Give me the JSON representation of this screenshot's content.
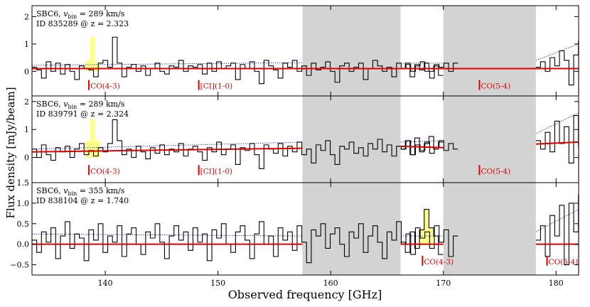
{
  "figure": {
    "ylabel": "Flux density [mJy/beam]",
    "xlabel": "Observed frequency [GHz]",
    "x_ticks": [
      140,
      150,
      160,
      170,
      180
    ],
    "xlim": [
      133.5,
      182.0
    ]
  },
  "chart_data": [
    {
      "type": "line",
      "title_line1": "SBC6, v_bin = 289 km/s",
      "title_line1_prefix": "SBC6, ",
      "title_line1_var": "v",
      "title_line1_sub": "bin",
      "title_line1_rest": " = 289 km/s",
      "title_line2": "ID 835289 @ z = 2.323",
      "ylim": [
        -0.9,
        2.4
      ],
      "y_ticks": [
        0,
        1,
        2
      ],
      "y_tick_labels": [
        "0",
        "1",
        "2"
      ],
      "gray_bands": [
        [
          157.5,
          166.2
        ],
        [
          170.0,
          178.2
        ]
      ],
      "spectrum_segments": [
        {
          "start": 133.5,
          "step": 0.42,
          "values": [
            0.15,
            0.05,
            -0.25,
            0.35,
            0.0,
            0.3,
            -0.1,
            0.25,
            0.0,
            -0.3,
            0.2,
            0.1,
            0.05,
            -0.2,
            0.3,
            0.4,
            0.15,
            1.25,
            0.3,
            -0.2,
            0.15,
            0.25,
            0.0,
            0.2,
            -0.15,
            0.1,
            0.3,
            0.0,
            -0.1,
            0.2,
            0.15,
            0.4,
            0.0,
            0.2,
            0.15,
            0.25,
            -0.1,
            0.3,
            0.0,
            0.35,
            0.1,
            0.2,
            0.3,
            -0.3,
            0.25,
            0.1,
            0.35,
            0.0,
            -0.45,
            0.4,
            0.2,
            0.05,
            -0.25,
            0.3,
            0.15,
            0.4,
            0.0,
            0.2,
            -0.15,
            0.3,
            0.05,
            0.15,
            0.35,
            0.0,
            -0.4,
            0.2,
            0.3,
            0.0,
            0.15,
            0.3,
            -0.3,
            0.1,
            0.4,
            0.2,
            0.0,
            0.15,
            -0.2,
            0.3,
            0.1,
            0.25,
            0.0,
            0.2,
            0.35,
            0.0,
            -0.25,
            0.25,
            0.15,
            0.3,
            0.0,
            0.3
          ]
        },
        {
          "start": 166.2,
          "step": 0.42,
          "values": [
            0.1,
            0.3,
            -0.2,
            0.25,
            0.05,
            0.3,
            0.0,
            0.2,
            -0.15
          ]
        },
        {
          "start": 178.2,
          "step": 0.42,
          "values": [
            0.15,
            0.35,
            0.0,
            0.5,
            0.2,
            0.75,
            0.4,
            -0.5,
            0.6,
            1.1,
            -0.8
          ]
        }
      ],
      "highlight": {
        "start": 138.26,
        "step": 0.42,
        "values": [
          0.4,
          1.25,
          0.3
        ],
        "color": "#ffff88"
      },
      "continuum_segments": [
        {
          "x0": 133.5,
          "x1": 182.0,
          "y0": 0.1,
          "y1": 0.1
        }
      ],
      "rms_segments": [
        {
          "x0": 133.5,
          "x1": 157.5,
          "y0": 0.22,
          "y1": 0.32
        },
        {
          "x0": 166.2,
          "x1": 170.0,
          "y0": 0.3,
          "y1": 0.3
        },
        {
          "x0": 178.2,
          "x1": 182.0,
          "y0": 0.4,
          "y1": 1.0
        }
      ],
      "lines": [
        {
          "name": "CO(4-3)",
          "x": 138.55,
          "y": -0.5
        },
        {
          "name": "[CI](1-0)",
          "x": 148.3,
          "y": -0.5
        },
        {
          "name": "CO(5-4)",
          "x": 173.2,
          "y": -0.5
        }
      ]
    },
    {
      "type": "line",
      "title_line1": "SBC6, v_bin = 289 km/s",
      "title_line1_prefix": "SBC6, ",
      "title_line1_var": "v",
      "title_line1_sub": "bin",
      "title_line1_rest": " = 289 km/s",
      "title_line2": "ID 839791 @ z = 2.324",
      "ylim": [
        -0.9,
        2.2
      ],
      "y_ticks": [
        0,
        1,
        2
      ],
      "y_tick_labels": [
        "0",
        "1",
        "2"
      ],
      "gray_bands": [
        [
          157.5,
          166.2
        ],
        [
          170.0,
          178.2
        ]
      ],
      "spectrum_segments": [
        {
          "start": 133.5,
          "step": 0.42,
          "values": [
            0.3,
            0.0,
            0.45,
            0.1,
            -0.1,
            0.35,
            0.2,
            0.4,
            0.0,
            0.3,
            0.5,
            0.1,
            0.25,
            0.05,
            0.35,
            0.2,
            0.5,
            1.35,
            0.6,
            0.1,
            0.3,
            0.0,
            0.4,
            0.2,
            -0.05,
            0.35,
            0.15,
            0.45,
            0.1,
            0.3,
            0.2,
            0.5,
            0.05,
            0.3,
            0.4,
            0.2,
            -0.1,
            0.35,
            0.2,
            0.55,
            0.1,
            0.3,
            0.45,
            -0.25,
            0.35,
            0.25,
            0.5,
            0.1,
            -0.4,
            0.45,
            0.3,
            0.15,
            0.5,
            0.05,
            0.4,
            0.2,
            0.55,
            0.1,
            0.3,
            -0.2,
            0.45,
            0.25,
            0.6,
            0.1,
            -0.25,
            0.4,
            0.3,
            0.55,
            0.15,
            0.35,
            0.05,
            0.5,
            0.3,
            0.65,
            0.2,
            0.45,
            0.05,
            0.4,
            0.3,
            0.6,
            0.1,
            0.45,
            0.25,
            0.55,
            0.15,
            0.35,
            0.6,
            0.25,
            0.5,
            0.3
          ]
        },
        {
          "start": 166.2,
          "step": 0.42,
          "values": [
            0.3,
            0.6,
            0.1,
            0.7,
            0.2,
            0.5,
            0.75,
            0.3,
            0.55
          ]
        },
        {
          "start": 178.2,
          "step": 0.42,
          "values": [
            0.6,
            0.3,
            0.9,
            0.2,
            1.3,
            0.5,
            1.1,
            -0.2,
            1.5,
            0.4,
            -1.0
          ]
        }
      ],
      "highlight": {
        "start": 138.26,
        "step": 0.42,
        "values": [
          0.6,
          1.35,
          0.6
        ],
        "color": "#ffff88"
      },
      "continuum_segments": [
        {
          "x0": 133.5,
          "x1": 157.5,
          "y0": 0.2,
          "y1": 0.33
        },
        {
          "x0": 166.2,
          "x1": 170.0,
          "y0": 0.4,
          "y1": 0.35
        },
        {
          "x0": 178.2,
          "x1": 182.0,
          "y0": 0.48,
          "y1": 0.55
        }
      ],
      "rms_segments": [
        {
          "x0": 133.5,
          "x1": 157.5,
          "y0": 0.3,
          "y1": 0.55
        },
        {
          "x0": 166.2,
          "x1": 170.0,
          "y0": 0.55,
          "y1": 0.6
        },
        {
          "x0": 178.2,
          "x1": 182.0,
          "y0": 0.85,
          "y1": 1.6
        }
      ],
      "lines": [
        {
          "name": "CO(4-3)",
          "x": 138.55,
          "y": -0.45
        },
        {
          "name": "[CI](1-0)",
          "x": 148.3,
          "y": -0.45
        },
        {
          "name": "CO(5-4)",
          "x": 173.2,
          "y": -0.45
        }
      ]
    },
    {
      "type": "line",
      "title_line1": "SBC6, v_bin = 355 km/s",
      "title_line1_prefix": "SBC6, ",
      "title_line1_var": "v",
      "title_line1_sub": "bin",
      "title_line1_rest": " = 355 km/s",
      "title_line2": "ID 838104 @ z = 1.740",
      "ylim": [
        -0.75,
        1.5
      ],
      "y_ticks": [
        -0.5,
        0.0,
        0.5,
        1.0,
        1.5
      ],
      "y_tick_labels": [
        "−0.5",
        "0.0",
        "0.5",
        "1.0",
        "1.5"
      ],
      "gray_bands": [
        [
          157.5,
          166.2
        ],
        [
          170.0,
          178.2
        ]
      ],
      "spectrum_segments": [
        {
          "start": 133.5,
          "step": 0.42,
          "values": [
            0.1,
            -0.2,
            0.3,
            0.05,
            0.4,
            -0.35,
            0.2,
            0.55,
            -0.1,
            0.25,
            0.15,
            -0.4,
            0.35,
            0.1,
            0.5,
            -0.2,
            0.2,
            0.05,
            0.45,
            -0.3,
            0.25,
            0.4,
            0.0,
            -0.25,
            0.3,
            0.15,
            0.5,
            0.05,
            -0.35,
            0.2,
            0.45,
            0.1,
            0.3,
            -0.15,
            0.4,
            0.05,
            0.25,
            -0.4,
            0.35,
            0.15,
            0.5,
            0.0,
            -0.2,
            0.3,
            0.45,
            0.1,
            -0.35,
            0.25,
            0.55,
            0.0,
            0.2,
            -0.3,
            0.4,
            0.1,
            0.3,
            -0.15,
            0.45,
            0.05,
            -0.45,
            0.35,
            0.2,
            0.5,
            -0.1,
            0.25,
            0.4,
            0.0,
            -0.3,
            0.3,
            0.15,
            0.5,
            -0.2,
            0.2,
            0.45,
            0.05,
            -0.35,
            0.3,
            0.1,
            0.55,
            0.0,
            0.25,
            -0.25,
            0.4,
            0.15,
            0.3,
            -0.1,
            0.45,
            0.05,
            0.35,
            -0.3,
            0.2
          ]
        },
        {
          "start": 166.2,
          "step": 0.42,
          "values": [
            0.05,
            -0.2,
            0.3,
            -0.1,
            0.35,
            0.85,
            0.4,
            0.2,
            -0.25
          ]
        },
        {
          "start": 178.2,
          "step": 0.42,
          "values": [
            0.1,
            0.45,
            -0.3,
            0.7,
            0.2,
            0.95,
            -0.5,
            1.0,
            0.3,
            1.2,
            -0.7
          ]
        }
      ],
      "highlight": {
        "start": 167.88,
        "step": 0.42,
        "values": [
          0.35,
          0.85,
          0.4
        ],
        "color": "#ffff88"
      },
      "continuum_segments": [
        {
          "x0": 133.5,
          "x1": 157.5,
          "y0": 0.0,
          "y1": 0.0
        },
        {
          "x0": 166.2,
          "x1": 170.0,
          "y0": 0.0,
          "y1": 0.0
        },
        {
          "x0": 178.2,
          "x1": 182.0,
          "y0": 0.0,
          "y1": 0.0
        }
      ],
      "rms_segments": [
        {
          "x0": 133.5,
          "x1": 157.5,
          "y0": 0.25,
          "y1": 0.2
        },
        {
          "x0": 166.2,
          "x1": 170.0,
          "y0": 0.2,
          "y1": 0.2
        },
        {
          "x0": 178.2,
          "x1": 182.0,
          "y0": 0.3,
          "y1": 0.85
        }
      ],
      "lines": [
        {
          "name": "CO(4-3)",
          "x": 168.15,
          "y": -0.4
        },
        {
          "name": "CO(5-4)",
          "x": 179.2,
          "y": -0.4
        }
      ]
    }
  ],
  "colors": {
    "spectrum": "#000000",
    "continuum": "#e00000",
    "rms": "#3333cc",
    "band": "#d3d3d3",
    "line_marker": "#e00000"
  }
}
